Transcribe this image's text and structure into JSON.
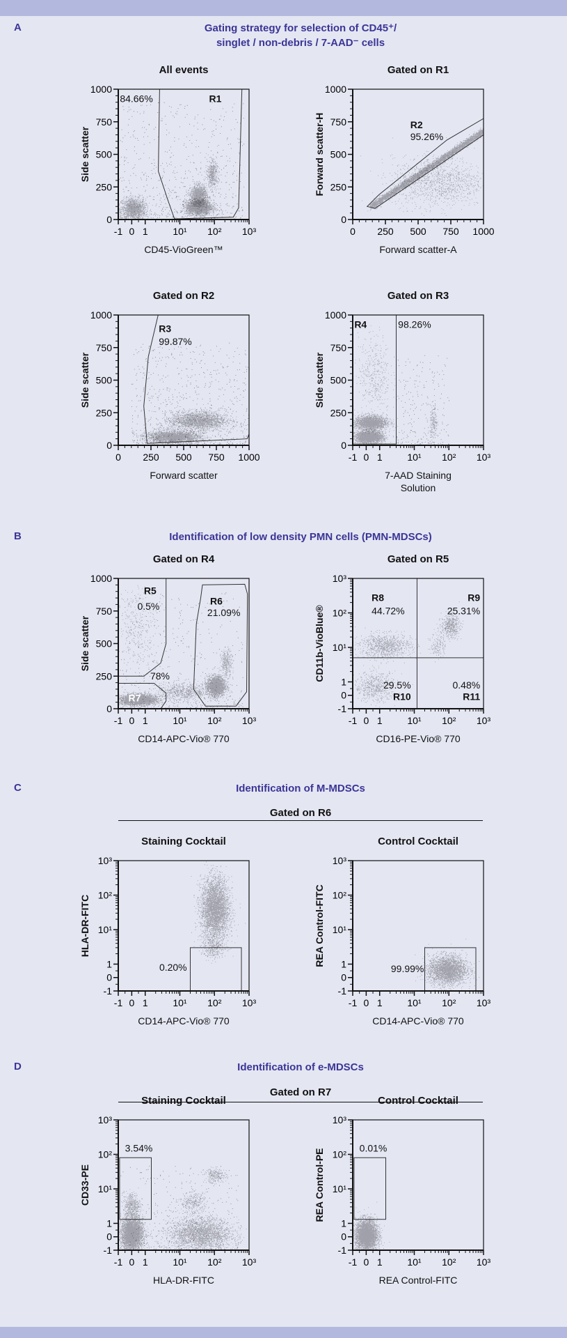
{
  "colors": {
    "background": "#e4e6f2",
    "bars": "#b3b9de",
    "heading": "#3b3596",
    "ink": "#111111"
  },
  "panels": [
    {
      "letter": "A",
      "title_lines": [
        "Gating strategy for selection of CD45⁺/",
        "singlet / non-debris / 7-AAD⁻ cells"
      ]
    },
    {
      "letter": "B",
      "title_lines": [
        "Identification of low density PMN cells (PMN-MDSCs)"
      ]
    },
    {
      "letter": "C",
      "title_lines": [
        "Identification of M-MDSCs"
      ],
      "group": "Gated on R6"
    },
    {
      "letter": "D",
      "title_lines": [
        "Identification of e-MDSCs"
      ],
      "group": "Gated on R7"
    }
  ],
  "chart_data": [
    {
      "type": "scatter",
      "title": "All events",
      "xlabel": [
        "CD45-VioGreen™"
      ],
      "ylabel": "Side scatter",
      "xscale": "biexponential",
      "yscale": "linear",
      "xlim": [
        -1,
        1000
      ],
      "ylim": [
        0,
        1000
      ],
      "gates": [
        {
          "name": "R1",
          "points": [
            [
              2.6,
              1000
            ],
            [
              2.4,
              370
            ],
            [
              4.5,
              150
            ],
            [
              7,
              5
            ],
            [
              350,
              18
            ],
            [
              500,
              90
            ],
            [
              620,
              1000
            ]
          ]
        }
      ],
      "lines": [],
      "labels": [
        {
          "text": "84.66%",
          "at": [
            -0.88,
            900
          ],
          "anchor": "start"
        },
        {
          "text": "R1",
          "at": [
            70,
            900
          ],
          "anchor": "start",
          "bold": true
        }
      ],
      "populations": [
        {
          "x": [
            -0.8,
            1
          ],
          "y": [
            0,
            160
          ],
          "n": 1500
        },
        {
          "x": [
            15,
            80
          ],
          "y": [
            40,
            150
          ],
          "n": 2600
        },
        {
          "x": [
            20,
            60
          ],
          "y": [
            100,
            260
          ],
          "n": 1500
        },
        {
          "x": [
            60,
            120
          ],
          "y": [
            250,
            450
          ],
          "n": 500
        },
        {
          "x": [
            -1,
            700
          ],
          "y": [
            0,
            900
          ],
          "n": 700,
          "uniform": true
        }
      ]
    },
    {
      "type": "scatter",
      "title": "Gated on R1",
      "xlabel": [
        "Forward scatter-A"
      ],
      "ylabel": "Forward scatter-H",
      "xscale": "linear",
      "yscale": "linear",
      "xlim": [
        0,
        1000
      ],
      "ylim": [
        0,
        1000
      ],
      "gates": [
        {
          "name": "R2",
          "points": [
            [
              110,
              100
            ],
            [
              170,
              85
            ],
            [
              1000,
              650
            ],
            [
              1000,
              775
            ],
            [
              720,
              610
            ],
            [
              200,
              190
            ]
          ]
        }
      ],
      "lines": [],
      "labels": [
        {
          "text": "R2",
          "at": [
            440,
            700
          ],
          "anchor": "start",
          "bold": true
        },
        {
          "text": "95.26%",
          "at": [
            440,
            610
          ],
          "anchor": "start"
        }
      ],
      "populations": [
        {
          "x": [
            140,
            1000
          ],
          "y": [
            100,
            680
          ],
          "n": 4500,
          "diagonal": true
        },
        {
          "x": [
            300,
            1000
          ],
          "y": [
            100,
            480
          ],
          "n": 1200
        }
      ]
    },
    {
      "type": "scatter",
      "title": "Gated on R2",
      "xlabel": [
        "Forward scatter"
      ],
      "ylabel": "Side scatter",
      "xscale": "linear",
      "yscale": "linear",
      "xlim": [
        0,
        1000
      ],
      "ylim": [
        0,
        1000
      ],
      "gates": [
        {
          "name": "R3",
          "points": [
            [
              305,
              1000
            ],
            [
              230,
              680
            ],
            [
              195,
              300
            ],
            [
              220,
              15
            ],
            [
              985,
              50
            ],
            [
              1000,
              85
            ],
            [
              1000,
              1000
            ]
          ]
        }
      ],
      "lines": [],
      "labels": [
        {
          "text": "R3",
          "at": [
            310,
            870
          ],
          "anchor": "start",
          "bold": true
        },
        {
          "text": "99.87%",
          "at": [
            310,
            770
          ],
          "anchor": "start"
        }
      ],
      "populations": [
        {
          "x": [
            220,
            620
          ],
          "y": [
            20,
            110
          ],
          "n": 2600
        },
        {
          "x": [
            400,
            820
          ],
          "y": [
            120,
            260
          ],
          "n": 2200
        },
        {
          "x": [
            100,
            1000
          ],
          "y": [
            0,
            800
          ],
          "n": 800,
          "uniform": true
        }
      ]
    },
    {
      "type": "scatter",
      "title": "Gated on R3",
      "xlabel": [
        "7-AAD Staining",
        "Solution"
      ],
      "ylabel": "Side scatter",
      "xscale": "biexponential",
      "yscale": "linear",
      "xlim": [
        -1,
        1000
      ],
      "ylim": [
        0,
        1000
      ],
      "gates": [
        {
          "name": "R4",
          "points": [
            [
              -1,
              10
            ],
            [
              3,
              10
            ],
            [
              3,
              1000
            ],
            [
              -1,
              1000
            ]
          ]
        }
      ],
      "lines": [],
      "labels": [
        {
          "text": "R4",
          "at": [
            -0.88,
            900
          ],
          "anchor": "start",
          "bold": true
        },
        {
          "text": "98.26%",
          "at": [
            3.4,
            900
          ],
          "anchor": "start"
        }
      ],
      "populations": [
        {
          "x": [
            -0.8,
            1.2
          ],
          "y": [
            20,
            110
          ],
          "n": 2600
        },
        {
          "x": [
            -0.9,
            1.6
          ],
          "y": [
            120,
            230
          ],
          "n": 2100
        },
        {
          "x": [
            -0.6,
            2
          ],
          "y": [
            250,
            850
          ],
          "n": 400
        },
        {
          "x": [
            28,
            45
          ],
          "y": [
            40,
            300
          ],
          "n": 180
        },
        {
          "x": [
            3,
            100
          ],
          "y": [
            0,
            700
          ],
          "n": 250,
          "uniform": true
        }
      ]
    },
    {
      "type": "scatter",
      "title": "Gated on R4",
      "xlabel": [
        "CD14-APC-Vio® 770"
      ],
      "ylabel": "Side scatter",
      "xscale": "biexponential",
      "yscale": "linear",
      "xlim": [
        -1,
        1000
      ],
      "ylim": [
        0,
        1000
      ],
      "gates": [
        {
          "name": "R5",
          "points": [
            [
              -1,
              250
            ],
            [
              0.9,
              250
            ],
            [
              2.8,
              350
            ],
            [
              4,
              500
            ],
            [
              4,
              1000
            ],
            [
              -1,
              1000
            ]
          ]
        },
        {
          "name": "R7",
          "points": [
            [
              -1,
              195
            ],
            [
              1.8,
              195
            ],
            [
              4,
              120
            ],
            [
              4,
              60
            ],
            [
              2.8,
              0
            ],
            [
              -1,
              0
            ]
          ]
        },
        {
          "name": "R6",
          "points": [
            [
              45,
              950
            ],
            [
              750,
              955
            ],
            [
              900,
              880
            ],
            [
              850,
              130
            ],
            [
              420,
              20
            ],
            [
              55,
              20
            ],
            [
              25,
              150
            ],
            [
              30,
              650
            ],
            [
              40,
              850
            ]
          ]
        }
      ],
      "lines": [],
      "labels": [
        {
          "text": "R5",
          "at": [
            2.1,
            880
          ],
          "anchor": "end",
          "bold": true
        },
        {
          "text": "0.5%",
          "at": [
            2.6,
            760
          ],
          "anchor": "end"
        },
        {
          "text": "R6",
          "at": [
            75,
            800
          ],
          "anchor": "start",
          "bold": true
        },
        {
          "text": "21.09%",
          "at": [
            62,
            710
          ],
          "anchor": "start"
        },
        {
          "text": "78%",
          "at": [
            1.4,
            225
          ],
          "anchor": "start"
        },
        {
          "text": "R7",
          "at": [
            -0.25,
            55
          ],
          "anchor": "start",
          "bold": true,
          "white": true
        }
      ],
      "populations": [
        {
          "x": [
            -0.9,
            2
          ],
          "y": [
            30,
            110
          ],
          "n": 2800
        },
        {
          "x": [
            60,
            200
          ],
          "y": [
            100,
            250
          ],
          "n": 2200
        },
        {
          "x": [
            2,
            80
          ],
          "y": [
            60,
            200
          ],
          "n": 700
        },
        {
          "x": [
            150,
            320
          ],
          "y": [
            250,
            450
          ],
          "n": 300
        },
        {
          "x": [
            -0.9,
            2
          ],
          "y": [
            300,
            950
          ],
          "n": 300
        },
        {
          "x": [
            -1,
            700
          ],
          "y": [
            0,
            900
          ],
          "n": 500,
          "uniform": true
        }
      ]
    },
    {
      "type": "scatter",
      "title": "Gated on R5",
      "xlabel": [
        "CD16-PE-Vio® 770"
      ],
      "ylabel": "CD11b-VioBlue®",
      "xscale": "biexponential",
      "yscale": "biexponential",
      "xlim": [
        -1,
        1000
      ],
      "ylim": [
        -1,
        1000
      ],
      "gates": [],
      "lines": [
        {
          "x": 12
        },
        {
          "y": 5
        }
      ],
      "labels": [
        {
          "text": "R8",
          "at": [
            0.4,
            220
          ],
          "anchor": "start",
          "bold": true
        },
        {
          "text": "44.72%",
          "at": [
            0.4,
            90
          ],
          "anchor": "start"
        },
        {
          "text": "R9",
          "at": [
            800,
            220
          ],
          "anchor": "end",
          "bold": true
        },
        {
          "text": "25.31%",
          "at": [
            800,
            90
          ],
          "anchor": "end"
        },
        {
          "text": "29.5%",
          "at": [
            8,
            0.5
          ],
          "anchor": "end"
        },
        {
          "text": "R10",
          "at": [
            8,
            -0.35
          ],
          "anchor": "end",
          "bold": true
        },
        {
          "text": "0.48%",
          "at": [
            800,
            0.5
          ],
          "anchor": "end"
        },
        {
          "text": "R11",
          "at": [
            800,
            -0.35
          ],
          "anchor": "end",
          "bold": true
        }
      ],
      "populations": [
        {
          "x": [
            -0.9,
            3
          ],
          "y": [
            -0.5,
            2
          ],
          "n": 600
        },
        {
          "x": [
            -0.5,
            8
          ],
          "y": [
            5,
            25
          ],
          "n": 900
        },
        {
          "x": [
            60,
            200
          ],
          "y": [
            20,
            90
          ],
          "n": 500
        },
        {
          "x": [
            30,
            80
          ],
          "y": [
            5,
            30
          ],
          "n": 150
        }
      ]
    },
    {
      "type": "scatter",
      "title": "Staining Cocktail",
      "xlabel": [
        "CD14-APC-Vio® 770"
      ],
      "ylabel": "HLA-DR-FITC",
      "xscale": "biexponential",
      "yscale": "biexponential",
      "xlim": [
        -1,
        1000
      ],
      "ylim": [
        -1,
        1000
      ],
      "gates": [
        {
          "points": [
            [
              20,
              -1
            ],
            [
              600,
              -1
            ],
            [
              600,
              3
            ],
            [
              20,
              3
            ]
          ]
        }
      ],
      "lines": [],
      "labels": [
        {
          "text": "0.20%",
          "at": [
            16,
            0.5
          ],
          "anchor": "end"
        }
      ],
      "populations": [
        {
          "x": [
            40,
            260
          ],
          "y": [
            5,
            320
          ],
          "n": 3800
        },
        {
          "x": [
            40,
            220
          ],
          "y": [
            1.5,
            6
          ],
          "n": 300
        }
      ]
    },
    {
      "type": "scatter",
      "title": "Control Cocktail",
      "xlabel": [
        "CD14-APC-Vio® 770"
      ],
      "ylabel": "REA Control-FITC",
      "xscale": "biexponential",
      "yscale": "biexponential",
      "xlim": [
        -1,
        1000
      ],
      "ylim": [
        -1,
        1000
      ],
      "gates": [
        {
          "points": [
            [
              20,
              -1
            ],
            [
              600,
              -1
            ],
            [
              600,
              3
            ],
            [
              20,
              3
            ]
          ]
        }
      ],
      "lines": [],
      "labels": [
        {
          "text": "99.99%",
          "at": [
            19,
            0.4
          ],
          "anchor": "end"
        }
      ],
      "populations": [
        {
          "x": [
            25,
            320
          ],
          "y": [
            -0.5,
            1.8
          ],
          "n": 2800
        }
      ]
    },
    {
      "type": "scatter",
      "title": "Staining Cocktail",
      "xlabel": [
        "HLA-DR-FITC"
      ],
      "ylabel": "CD33-PE",
      "xscale": "biexponential",
      "yscale": "biexponential",
      "xlim": [
        -1,
        1000
      ],
      "ylim": [
        -1,
        1000
      ],
      "gates": [
        {
          "points": [
            [
              -0.9,
              1.3
            ],
            [
              1.5,
              1.3
            ],
            [
              1.5,
              80
            ],
            [
              -0.9,
              80
            ]
          ]
        }
      ],
      "lines": [],
      "labels": [
        {
          "text": "3.54%",
          "at": [
            -0.5,
            120
          ],
          "anchor": "start"
        }
      ],
      "populations": [
        {
          "x": [
            -0.8,
            0.8
          ],
          "y": [
            -1,
            1.5
          ],
          "n": 4000
        },
        {
          "x": [
            -0.6,
            0.6
          ],
          "y": [
            1.5,
            8
          ],
          "n": 400
        },
        {
          "x": [
            5,
            300
          ],
          "y": [
            -1,
            1.5
          ],
          "n": 2500
        },
        {
          "x": [
            10,
            60
          ],
          "y": [
            2,
            8
          ],
          "n": 300
        },
        {
          "x": [
            50,
            220
          ],
          "y": [
            15,
            40
          ],
          "n": 250
        },
        {
          "x": [
            -1,
            600
          ],
          "y": [
            -1,
            50
          ],
          "n": 400,
          "uniform": true
        }
      ]
    },
    {
      "type": "scatter",
      "title": "Control Cocktail",
      "xlabel": [
        "REA Control-FITC"
      ],
      "ylabel": "REA Control-PE",
      "xscale": "biexponential",
      "yscale": "biexponential",
      "xlim": [
        -1,
        1000
      ],
      "ylim": [
        -1,
        1000
      ],
      "gates": [
        {
          "points": [
            [
              -0.9,
              1.3
            ],
            [
              1.5,
              1.3
            ],
            [
              1.5,
              80
            ],
            [
              -0.9,
              80
            ]
          ]
        }
      ],
      "lines": [],
      "labels": [
        {
          "text": "0.01%",
          "at": [
            -0.5,
            120
          ],
          "anchor": "start"
        }
      ],
      "populations": [
        {
          "x": [
            -0.8,
            0.8
          ],
          "y": [
            -1,
            1.3
          ],
          "n": 4000
        }
      ]
    }
  ],
  "ticks": {
    "linear": [
      "0",
      "250",
      "500",
      "750",
      "1000"
    ],
    "biexponential": [
      "-1",
      "0",
      "1",
      "10¹",
      "10²",
      "10³"
    ]
  }
}
